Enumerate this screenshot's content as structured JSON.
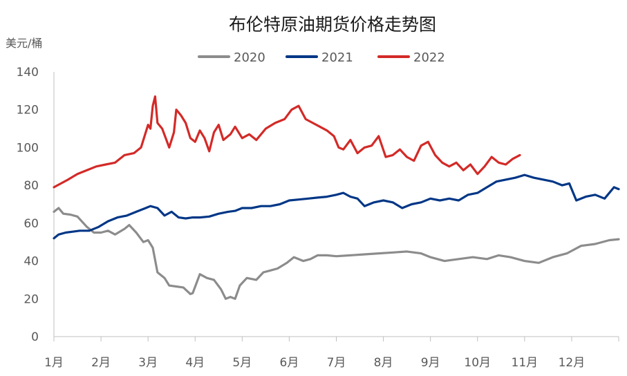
{
  "chart_data": {
    "type": "line",
    "title": "布伦特原油期货价格走势图",
    "ylabel": "美元/桶",
    "xlabel": "",
    "ylim": [
      0,
      140
    ],
    "yticks": [
      "0",
      "20",
      "40",
      "60",
      "80",
      "100",
      "120",
      "140"
    ],
    "categories": [
      "1月",
      "2月",
      "3月",
      "4月",
      "5月",
      "6月",
      "7月",
      "8月",
      "9月",
      "10月",
      "11月",
      "12月"
    ],
    "x_unit": "month index (1 = start of 1月, 13 = end of 12月)",
    "legend_position": "top-center",
    "grid": false,
    "series": [
      {
        "name": "2020",
        "color": "#8c8c8c",
        "x": [
          1.0,
          1.1,
          1.2,
          1.35,
          1.5,
          1.7,
          1.85,
          2.0,
          2.15,
          2.3,
          2.5,
          2.6,
          2.75,
          2.9,
          3.0,
          3.1,
          3.2,
          3.35,
          3.45,
          3.6,
          3.75,
          3.9,
          3.95,
          4.1,
          4.25,
          4.4,
          4.55,
          4.65,
          4.75,
          4.85,
          4.95,
          5.1,
          5.3,
          5.45,
          5.6,
          5.75,
          5.95,
          6.1,
          6.3,
          6.45,
          6.6,
          6.8,
          7.0,
          7.3,
          7.6,
          7.9,
          8.2,
          8.5,
          8.8,
          9.0,
          9.3,
          9.6,
          9.9,
          10.2,
          10.45,
          10.7,
          11.0,
          11.3,
          11.6,
          11.9,
          12.2,
          12.5,
          12.8,
          13.0
        ],
        "y": [
          66,
          68,
          65,
          64.5,
          63.5,
          58,
          55,
          55,
          56,
          54,
          57,
          59,
          55,
          50,
          51,
          47,
          34,
          31,
          27,
          26.5,
          26,
          22.5,
          23,
          33,
          31,
          30,
          25,
          20,
          21,
          20,
          27,
          31,
          30,
          34,
          35,
          36,
          39,
          42,
          40,
          41,
          43,
          43,
          42.5,
          43,
          43.5,
          44,
          44.5,
          45,
          44,
          42,
          40,
          41,
          42,
          41,
          43,
          42,
          40,
          39,
          42,
          44,
          48,
          49,
          51,
          51.5
        ]
      },
      {
        "name": "2021",
        "color": "#003686",
        "x": [
          1.0,
          1.1,
          1.25,
          1.4,
          1.55,
          1.75,
          1.95,
          2.15,
          2.35,
          2.55,
          2.75,
          2.95,
          3.05,
          3.2,
          3.35,
          3.5,
          3.65,
          3.8,
          3.95,
          4.1,
          4.3,
          4.5,
          4.7,
          4.85,
          5.0,
          5.2,
          5.4,
          5.6,
          5.8,
          6.0,
          6.2,
          6.4,
          6.6,
          6.8,
          7.0,
          7.15,
          7.3,
          7.45,
          7.6,
          7.8,
          8.0,
          8.2,
          8.4,
          8.6,
          8.8,
          9.0,
          9.2,
          9.4,
          9.6,
          9.8,
          10.0,
          10.2,
          10.4,
          10.6,
          10.8,
          11.0,
          11.2,
          11.4,
          11.6,
          11.8,
          11.95,
          12.1,
          12.3,
          12.5,
          12.7,
          12.9,
          13.0
        ],
        "y": [
          52,
          54,
          55,
          55.5,
          56,
          56,
          58,
          61,
          63,
          64,
          66,
          68,
          69,
          68,
          64,
          66,
          63,
          62.5,
          63,
          63,
          63.5,
          65,
          66,
          66.5,
          68,
          68,
          69,
          69,
          70,
          72,
          72.5,
          73,
          73.5,
          74,
          75,
          76,
          74,
          73,
          69,
          71,
          72,
          71,
          68,
          70,
          71,
          73,
          72,
          73,
          72,
          75,
          76,
          79,
          82,
          83,
          84,
          85.5,
          84,
          83,
          82,
          80,
          81,
          72,
          74,
          75,
          73,
          79,
          78
        ]
      },
      {
        "name": "2022",
        "color": "#d32a27",
        "x": [
          1.0,
          1.15,
          1.3,
          1.5,
          1.7,
          1.9,
          2.1,
          2.3,
          2.5,
          2.7,
          2.85,
          3.0,
          3.05,
          3.1,
          3.15,
          3.2,
          3.3,
          3.45,
          3.55,
          3.6,
          3.7,
          3.8,
          3.9,
          4.0,
          4.1,
          4.2,
          4.3,
          4.4,
          4.5,
          4.6,
          4.75,
          4.85,
          5.0,
          5.15,
          5.3,
          5.5,
          5.7,
          5.9,
          6.05,
          6.2,
          6.35,
          6.5,
          6.65,
          6.8,
          6.95,
          7.05,
          7.15,
          7.3,
          7.45,
          7.6,
          7.75,
          7.9,
          8.05,
          8.2,
          8.35,
          8.5,
          8.65,
          8.8,
          8.95,
          9.1,
          9.25,
          9.4,
          9.55,
          9.7,
          9.85,
          10.0,
          10.15,
          10.3,
          10.45,
          10.6,
          10.75,
          10.9
        ],
        "y": [
          79,
          81,
          83,
          86,
          88,
          90,
          91,
          92,
          96,
          97,
          100,
          112,
          110,
          122,
          127,
          113,
          110,
          100,
          108,
          120,
          117,
          113,
          105,
          103,
          109,
          105,
          98,
          108,
          112,
          104,
          107,
          111,
          105,
          107,
          104,
          110,
          113,
          115,
          120,
          122,
          115,
          113,
          111,
          109,
          106,
          100,
          99,
          104,
          97,
          100,
          101,
          106,
          95,
          96,
          99,
          95,
          93,
          101,
          103,
          96,
          92,
          90,
          92,
          88,
          91,
          86,
          90,
          95,
          92,
          91,
          94,
          96
        ]
      }
    ]
  }
}
